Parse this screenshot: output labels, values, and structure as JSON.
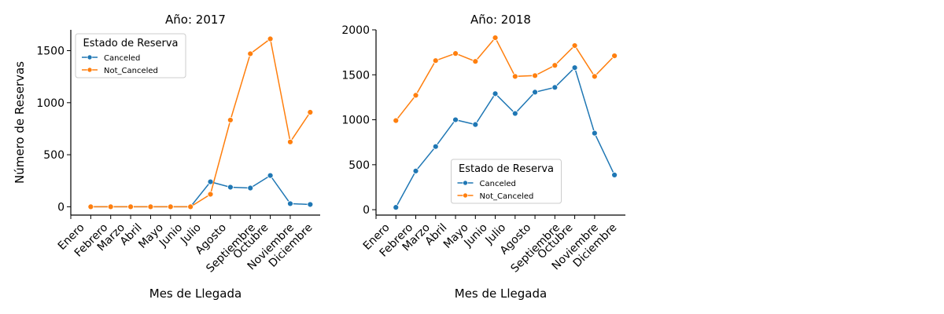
{
  "chart_data": [
    {
      "type": "line",
      "title": "Año: 2017",
      "xlabel": "Mes de Llegada",
      "ylabel": "Número de Reservas",
      "legend_title": "Estado de Reserva",
      "legend": "upper left",
      "x": [
        1,
        2,
        3,
        4,
        5,
        6,
        7,
        8,
        9,
        10,
        11,
        12
      ],
      "series": [
        {
          "name": "Canceled",
          "color": "#1f77b4",
          "values": [
            0,
            0,
            0,
            0,
            0,
            0,
            240,
            188,
            180,
            300,
            30,
            22
          ]
        },
        {
          "name": "Not_Canceled",
          "color": "#ff7f0e",
          "values": [
            0,
            0,
            0,
            0,
            0,
            0,
            120,
            833,
            1470,
            1613,
            623,
            908
          ]
        }
      ],
      "xlim": [
        0,
        12.5
      ],
      "ylim": [
        -80,
        1700
      ],
      "xticks": [
        {
          "value": 0,
          "label": "Enero"
        },
        {
          "value": 1,
          "label": "Febrero"
        },
        {
          "value": 2,
          "label": "Marzo"
        },
        {
          "value": 3,
          "label": "Abril"
        },
        {
          "value": 4,
          "label": "Mayo"
        },
        {
          "value": 5,
          "label": "Junio"
        },
        {
          "value": 6,
          "label": "Julio"
        },
        {
          "value": 7,
          "label": "Agosto"
        },
        {
          "value": 8,
          "label": "Septiembre"
        },
        {
          "value": 9,
          "label": "Octubre"
        },
        {
          "value": 10,
          "label": "Noviembre"
        },
        {
          "value": 11,
          "label": "Diciembre"
        }
      ],
      "yticks": [
        0,
        500,
        1000,
        1500
      ]
    },
    {
      "type": "line",
      "title": "Año: 2018",
      "xlabel": "Mes de Llegada",
      "legend_title": "Estado de Reserva",
      "legend": "lower center",
      "x": [
        1,
        2,
        3,
        4,
        5,
        6,
        7,
        8,
        9,
        10,
        11,
        12
      ],
      "series": [
        {
          "name": "Canceled",
          "color": "#1f77b4",
          "values": [
            26,
            430,
            702,
            1000,
            947,
            1290,
            1070,
            1307,
            1360,
            1579,
            851,
            386
          ]
        },
        {
          "name": "Not_Canceled",
          "color": "#ff7f0e",
          "values": [
            991,
            1272,
            1658,
            1737,
            1649,
            1912,
            1482,
            1491,
            1605,
            1825,
            1482,
            1711
          ]
        }
      ],
      "xlim": [
        0,
        12.55
      ],
      "ylim": [
        -60,
        2000
      ],
      "xticks": [
        {
          "value": 0,
          "label": "Enero"
        },
        {
          "value": 1,
          "label": "Febrero"
        },
        {
          "value": 2,
          "label": "Marzo"
        },
        {
          "value": 3,
          "label": "Abril"
        },
        {
          "value": 4,
          "label": "Mayo"
        },
        {
          "value": 5,
          "label": "Junio"
        },
        {
          "value": 6,
          "label": "Julio"
        },
        {
          "value": 7,
          "label": "Agosto"
        },
        {
          "value": 8,
          "label": "Septiembre"
        },
        {
          "value": 9,
          "label": "Octubre"
        },
        {
          "value": 10,
          "label": "Noviembre"
        },
        {
          "value": 11,
          "label": "Diciembre"
        }
      ],
      "yticks": [
        0,
        500,
        1000,
        1500,
        2000
      ]
    }
  ]
}
